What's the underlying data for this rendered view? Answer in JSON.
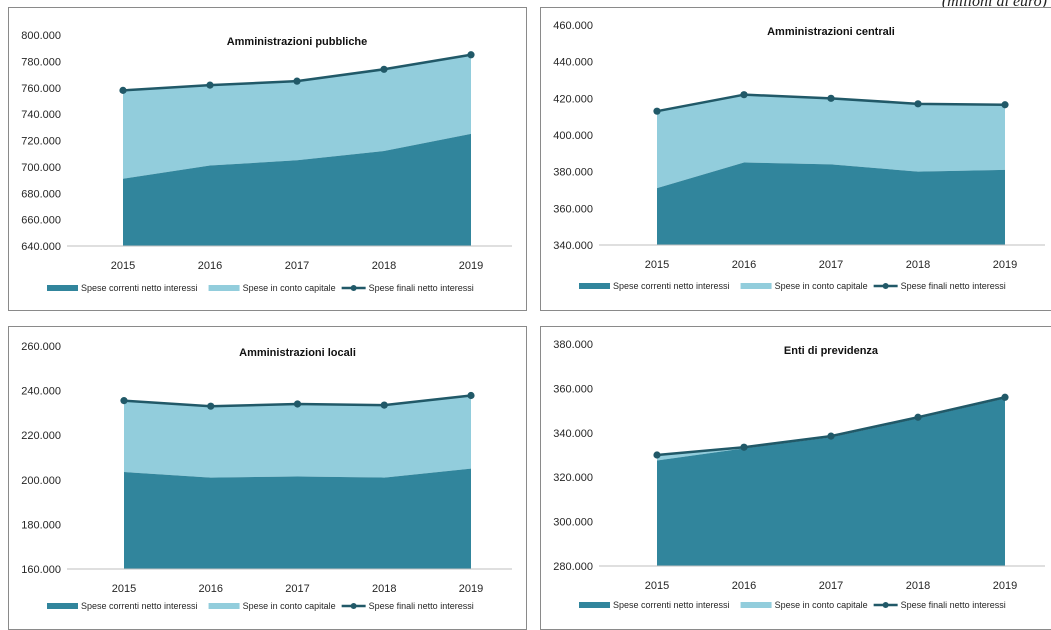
{
  "unit_note": "(milioni di euro)",
  "colors": {
    "correnti": "#31859C",
    "capitale": "#92CDDC",
    "finali": "#215968",
    "axis": "#bfbfbf"
  },
  "legend": [
    "Spese correnti netto interessi",
    "Spese in conto capitale",
    "Spese finali netto interessi"
  ],
  "chart_data": [
    {
      "type": "area",
      "title": "Amministrazioni pubbliche",
      "x": [
        "2015",
        "2016",
        "2017",
        "2018",
        "2019"
      ],
      "ylim": [
        640000,
        800000
      ],
      "yticks": [
        "640.000",
        "660.000",
        "680.000",
        "700.000",
        "720.000",
        "740.000",
        "760.000",
        "780.000",
        "800.000"
      ],
      "series": [
        {
          "name": "Spese correnti netto interessi",
          "type": "area",
          "values": [
            691000,
            701000,
            705000,
            712000,
            725000
          ]
        },
        {
          "name": "Spese in conto capitale",
          "type": "area",
          "values": [
            67000,
            61000,
            60000,
            62000,
            60000
          ]
        },
        {
          "name": "Spese finali netto interessi",
          "type": "line",
          "values": [
            758000,
            762000,
            765000,
            774000,
            785000
          ]
        }
      ],
      "legend_position": "bottom"
    },
    {
      "type": "area",
      "title": "Amministrazioni centrali",
      "x": [
        "2015",
        "2016",
        "2017",
        "2018",
        "2019"
      ],
      "ylim": [
        340000,
        460000
      ],
      "yticks": [
        "340.000",
        "360.000",
        "380.000",
        "400.000",
        "420.000",
        "440.000",
        "460.000"
      ],
      "series": [
        {
          "name": "Spese correnti netto interessi",
          "type": "area",
          "values": [
            371000,
            385000,
            384000,
            380000,
            381000
          ]
        },
        {
          "name": "Spese in conto capitale",
          "type": "area",
          "values": [
            42000,
            37000,
            36000,
            37000,
            35500
          ]
        },
        {
          "name": "Spese finali netto interessi",
          "type": "line",
          "values": [
            413000,
            422000,
            420000,
            417000,
            416500
          ]
        }
      ],
      "legend_position": "bottom"
    },
    {
      "type": "area",
      "title": "Amministrazioni locali",
      "x": [
        "2015",
        "2016",
        "2017",
        "2018",
        "2019"
      ],
      "ylim": [
        160000,
        260000
      ],
      "yticks": [
        "160.000",
        "180.000",
        "200.000",
        "220.000",
        "240.000",
        "260.000"
      ],
      "series": [
        {
          "name": "Spese correnti netto interessi",
          "type": "area",
          "values": [
            203500,
            201000,
            201500,
            201000,
            205000
          ]
        },
        {
          "name": "Spese in conto capitale",
          "type": "area",
          "values": [
            32000,
            32000,
            32500,
            32500,
            32800
          ]
        },
        {
          "name": "Spese finali netto interessi",
          "type": "line",
          "values": [
            235500,
            233000,
            234000,
            233500,
            237800
          ]
        }
      ],
      "legend_position": "bottom"
    },
    {
      "type": "area",
      "title": "Enti di previdenza",
      "x": [
        "2015",
        "2016",
        "2017",
        "2018",
        "2019"
      ],
      "ylim": [
        280000,
        380000
      ],
      "yticks": [
        "280.000",
        "300.000",
        "320.000",
        "340.000",
        "360.000",
        "380.000"
      ],
      "series": [
        {
          "name": "Spese correnti netto interessi",
          "type": "area",
          "values": [
            327500,
            333000,
            338000,
            346500,
            355500
          ]
        },
        {
          "name": "Spese in conto capitale",
          "type": "area",
          "values": [
            2500,
            500,
            500,
            500,
            500
          ]
        },
        {
          "name": "Spese finali netto interessi",
          "type": "line",
          "values": [
            330000,
            333500,
            338500,
            347000,
            356000
          ]
        }
      ],
      "legend_position": "bottom"
    }
  ]
}
